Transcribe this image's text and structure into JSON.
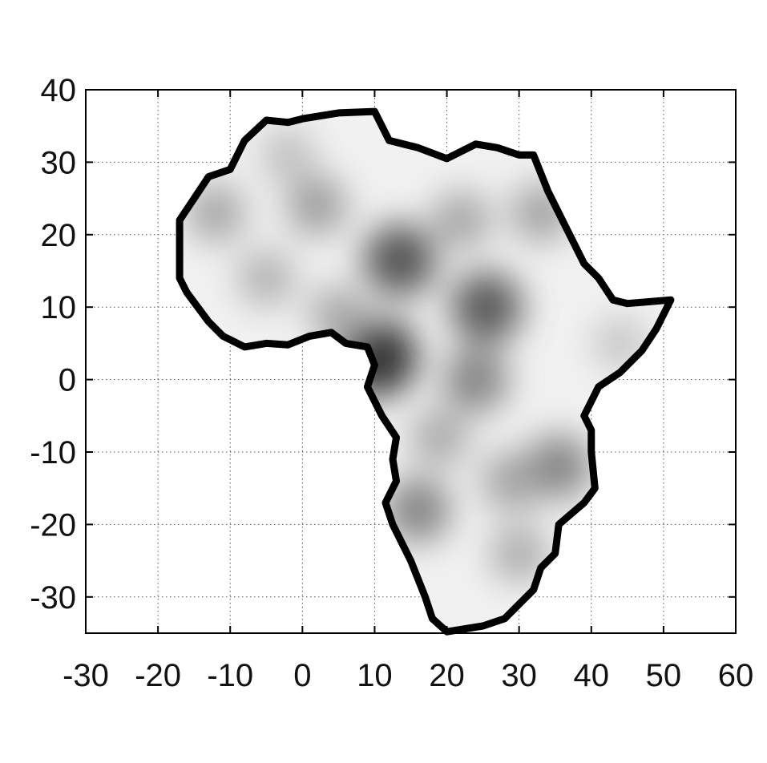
{
  "chart_data": {
    "type": "heatmap",
    "title": "",
    "xlabel": "",
    "ylabel": "",
    "xlim": [
      -30,
      60
    ],
    "ylim": [
      -35,
      40
    ],
    "x_ticks": [
      -30,
      -20,
      -10,
      0,
      10,
      20,
      30,
      40,
      50,
      60
    ],
    "y_ticks": [
      40,
      30,
      20,
      10,
      0,
      -10,
      -20,
      -30
    ],
    "x_tick_labels": [
      "-30",
      "-20",
      "-10",
      "0",
      "10",
      "20",
      "30",
      "40",
      "50",
      "60"
    ],
    "y_tick_labels": [
      "40",
      "30",
      "20",
      "10",
      "0",
      "-10",
      "-20",
      "-30"
    ],
    "grid": true,
    "colormap": "grayscale",
    "outline_color": "#000000",
    "outline": [
      [
        -17,
        20
      ],
      [
        -17,
        14
      ],
      [
        -16,
        12
      ],
      [
        -13,
        8
      ],
      [
        -11,
        6
      ],
      [
        -8,
        4.5
      ],
      [
        -5,
        5
      ],
      [
        -2,
        4.8
      ],
      [
        1,
        6
      ],
      [
        4,
        6.5
      ],
      [
        6,
        5
      ],
      [
        9,
        4.5
      ],
      [
        10,
        2
      ],
      [
        9,
        -1
      ],
      [
        11,
        -5
      ],
      [
        13,
        -8
      ],
      [
        12.5,
        -11
      ],
      [
        13,
        -14
      ],
      [
        11.5,
        -17
      ],
      [
        12.5,
        -20
      ],
      [
        15,
        -25
      ],
      [
        17,
        -30
      ],
      [
        18,
        -33
      ],
      [
        20,
        -34.8
      ],
      [
        25,
        -34
      ],
      [
        28,
        -33
      ],
      [
        32,
        -29
      ],
      [
        33,
        -26
      ],
      [
        35,
        -24
      ],
      [
        35.5,
        -20
      ],
      [
        39,
        -17
      ],
      [
        40.5,
        -15
      ],
      [
        40,
        -10
      ],
      [
        40,
        -7
      ],
      [
        39,
        -5
      ],
      [
        41,
        -1
      ],
      [
        44,
        1
      ],
      [
        47,
        4
      ],
      [
        49,
        7
      ],
      [
        51,
        11
      ],
      [
        45,
        10.5
      ],
      [
        43,
        11
      ],
      [
        41,
        14
      ],
      [
        39,
        16
      ],
      [
        37,
        20
      ],
      [
        36,
        22
      ],
      [
        34,
        26
      ],
      [
        32,
        31
      ],
      [
        30,
        31
      ],
      [
        27,
        32
      ],
      [
        24,
        32.5
      ],
      [
        20,
        30.5
      ],
      [
        16,
        32
      ],
      [
        12,
        33
      ],
      [
        11,
        35
      ],
      [
        10,
        37
      ],
      [
        5,
        36.8
      ],
      [
        0,
        36
      ],
      [
        -2,
        35.5
      ],
      [
        -5,
        35.8
      ],
      [
        -8,
        33
      ],
      [
        -10,
        29
      ],
      [
        -13,
        28
      ],
      [
        -15,
        25
      ],
      [
        -17,
        22
      ]
    ],
    "intensity_extrema": [
      {
        "x": 13.5,
        "y": 16.5,
        "intensity": 0.78
      },
      {
        "x": 25.5,
        "y": 10,
        "intensity": 0.75
      },
      {
        "x": 10.5,
        "y": 3,
        "intensity": 0.95
      },
      {
        "x": 24,
        "y": 0,
        "intensity": 0.55
      },
      {
        "x": 35.5,
        "y": -12,
        "intensity": 0.55
      },
      {
        "x": 16,
        "y": -18,
        "intensity": 0.55
      },
      {
        "x": 2,
        "y": 24,
        "intensity": 0.42
      },
      {
        "x": -12,
        "y": 23,
        "intensity": 0.38
      },
      {
        "x": 33,
        "y": 23,
        "intensity": 0.4
      },
      {
        "x": 29,
        "y": -14,
        "intensity": 0.4
      },
      {
        "x": -5,
        "y": 14,
        "intensity": 0.32
      },
      {
        "x": 5,
        "y": 9,
        "intensity": 0.36
      },
      {
        "x": 22,
        "y": 22,
        "intensity": 0.38
      },
      {
        "x": 19,
        "y": -8,
        "intensity": 0.36
      },
      {
        "x": 30,
        "y": -24,
        "intensity": 0.35
      },
      {
        "x": 44,
        "y": 5,
        "intensity": 0.22
      },
      {
        "x": -2,
        "y": 31,
        "intensity": 0.25
      }
    ]
  }
}
